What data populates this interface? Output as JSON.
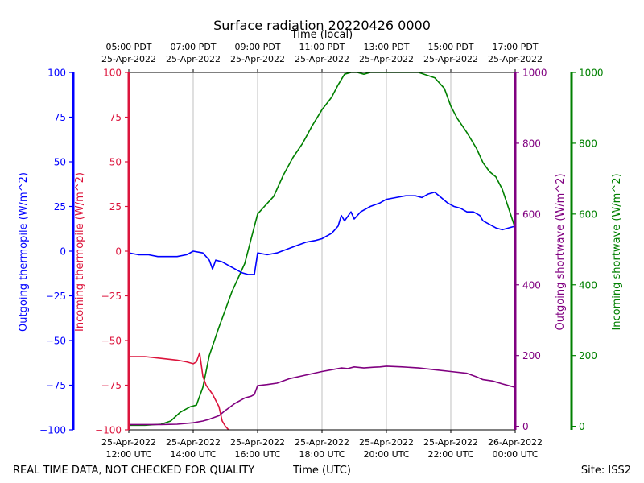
{
  "chart_data": {
    "type": "line",
    "title": "Surface radiation 20220426 0000",
    "top_axis_label": "Time (local)",
    "xlabel": "Time (UTC)",
    "footer_left": "REAL TIME DATA, NOT CHECKED FOR QUALITY",
    "footer_right": "Site: ISS2",
    "x_unit": "hours UTC",
    "xlim": [
      12,
      24
    ],
    "x_ticks": [
      12,
      14,
      16,
      18,
      20,
      22,
      24
    ],
    "x_tick_labels_utc": [
      [
        "25-Apr-2022",
        "12:00 UTC"
      ],
      [
        "25-Apr-2022",
        "14:00 UTC"
      ],
      [
        "25-Apr-2022",
        "16:00 UTC"
      ],
      [
        "25-Apr-2022",
        "18:00 UTC"
      ],
      [
        "25-Apr-2022",
        "20:00 UTC"
      ],
      [
        "25-Apr-2022",
        "22:00 UTC"
      ],
      [
        "26-Apr-2022",
        "00:00 UTC"
      ]
    ],
    "x_tick_labels_local": [
      [
        "05:00 PDT",
        "25-Apr-2022"
      ],
      [
        "07:00 PDT",
        "25-Apr-2022"
      ],
      [
        "09:00 PDT",
        "25-Apr-2022"
      ],
      [
        "11:00 PDT",
        "25-Apr-2022"
      ],
      [
        "13:00 PDT",
        "25-Apr-2022"
      ],
      [
        "15:00 PDT",
        "25-Apr-2022"
      ],
      [
        "17:00 PDT",
        "25-Apr-2022"
      ]
    ],
    "axes": {
      "outgoing_thermopile": {
        "label": "Outgoing thermopile (W/m^2)",
        "color": "#0000ff",
        "ylim": [
          -100,
          100
        ],
        "ticks": [
          -100,
          -75,
          -50,
          -25,
          0,
          25,
          50,
          75,
          100
        ]
      },
      "incoming_thermopile": {
        "label": "Incoming thermopile (W/m^2)",
        "color": "#dc143c",
        "ylim": [
          -100,
          100
        ],
        "ticks": [
          -100,
          -75,
          -50,
          -25,
          0,
          25,
          50,
          75,
          100
        ]
      },
      "outgoing_shortwave": {
        "label": "Outgoing shortwave (W/m^2)",
        "color": "#800080",
        "ylim": [
          -10,
          1000
        ],
        "ticks": [
          0,
          200,
          400,
          600,
          800,
          1000
        ]
      },
      "incoming_shortwave": {
        "label": "Incoming shortwave (W/m^2)",
        "color": "#008000",
        "ylim": [
          -10,
          1000
        ],
        "ticks": [
          0,
          200,
          400,
          600,
          800,
          1000
        ]
      }
    },
    "series": [
      {
        "name": "Outgoing thermopile",
        "axis": "outgoing_thermopile",
        "color": "#0000ff",
        "x": [
          12.0,
          12.3,
          12.6,
          12.9,
          13.2,
          13.5,
          13.8,
          14.0,
          14.3,
          14.5,
          14.6,
          14.7,
          14.9,
          15.1,
          15.3,
          15.5,
          15.7,
          15.9,
          16.0,
          16.3,
          16.6,
          16.9,
          17.2,
          17.5,
          17.8,
          18.0,
          18.1,
          18.3,
          18.5,
          18.6,
          18.7,
          18.9,
          19.0,
          19.2,
          19.5,
          19.8,
          20.0,
          20.3,
          20.6,
          20.9,
          21.1,
          21.3,
          21.5,
          21.7,
          21.9,
          22.1,
          22.3,
          22.5,
          22.7,
          22.9,
          23.0,
          23.2,
          23.4,
          23.6,
          23.8,
          24.0
        ],
        "y": [
          -1,
          -2,
          -2,
          -3,
          -3,
          -3,
          -2,
          0,
          -1,
          -5,
          -10,
          -5,
          -6,
          -8,
          -10,
          -12,
          -13,
          -13,
          -1,
          -2,
          -1,
          1,
          3,
          5,
          6,
          7,
          8,
          10,
          14,
          20,
          17,
          22,
          18,
          22,
          25,
          27,
          29,
          30,
          31,
          31,
          30,
          32,
          33,
          30,
          27,
          25,
          24,
          22,
          22,
          20,
          17,
          15,
          13,
          12,
          13,
          14
        ]
      },
      {
        "name": "Incoming thermopile",
        "axis": "incoming_thermopile",
        "color": "#dc143c",
        "x": [
          12.0,
          12.5,
          13.0,
          13.5,
          13.8,
          14.0,
          14.1,
          14.2,
          14.3,
          14.4,
          14.6,
          14.8,
          14.9,
          15.0,
          15.1
        ],
        "y": [
          -59,
          -59,
          -60,
          -61,
          -62,
          -63,
          -62,
          -57,
          -70,
          -75,
          -80,
          -87,
          -95,
          -98,
          -100
        ]
      },
      {
        "name": "Outgoing shortwave",
        "axis": "outgoing_shortwave",
        "color": "#800080",
        "x": [
          12.0,
          12.5,
          13.0,
          13.5,
          14.0,
          14.3,
          14.5,
          14.8,
          15.0,
          15.3,
          15.6,
          15.8,
          15.9,
          16.0,
          16.3,
          16.6,
          17.0,
          17.5,
          18.0,
          18.3,
          18.6,
          18.8,
          19.0,
          19.3,
          19.6,
          19.8,
          20.0,
          20.5,
          21.0,
          21.5,
          22.0,
          22.5,
          22.8,
          23.0,
          23.3,
          23.6,
          24.0
        ],
        "y": [
          5,
          5,
          5,
          6,
          10,
          15,
          20,
          30,
          45,
          65,
          80,
          85,
          90,
          115,
          118,
          122,
          135,
          145,
          155,
          160,
          165,
          163,
          168,
          165,
          167,
          168,
          170,
          168,
          165,
          160,
          155,
          150,
          140,
          132,
          128,
          120,
          110
        ]
      },
      {
        "name": "Incoming shortwave",
        "axis": "incoming_shortwave",
        "color": "#008000",
        "x": [
          12.0,
          12.5,
          13.0,
          13.3,
          13.6,
          13.9,
          14.1,
          14.3,
          14.5,
          14.8,
          15.0,
          15.2,
          15.4,
          15.6,
          15.8,
          16.0,
          16.2,
          16.5,
          16.8,
          17.1,
          17.4,
          17.7,
          18.0,
          18.3,
          18.5,
          18.7,
          18.9,
          19.1,
          19.3,
          19.5,
          19.8,
          20.0,
          20.5,
          21.0,
          21.5,
          21.8,
          22.0,
          22.2,
          22.5,
          22.8,
          23.0,
          23.2,
          23.4,
          23.6,
          23.8,
          24.0
        ],
        "y": [
          3,
          3,
          6,
          15,
          40,
          55,
          60,
          110,
          200,
          280,
          330,
          380,
          420,
          460,
          530,
          600,
          620,
          650,
          710,
          760,
          800,
          850,
          895,
          930,
          965,
          995,
          1000,
          1000,
          995,
          1000,
          1000,
          1000,
          1000,
          1000,
          985,
          955,
          905,
          870,
          830,
          785,
          745,
          720,
          705,
          670,
          615,
          560
        ]
      }
    ]
  }
}
